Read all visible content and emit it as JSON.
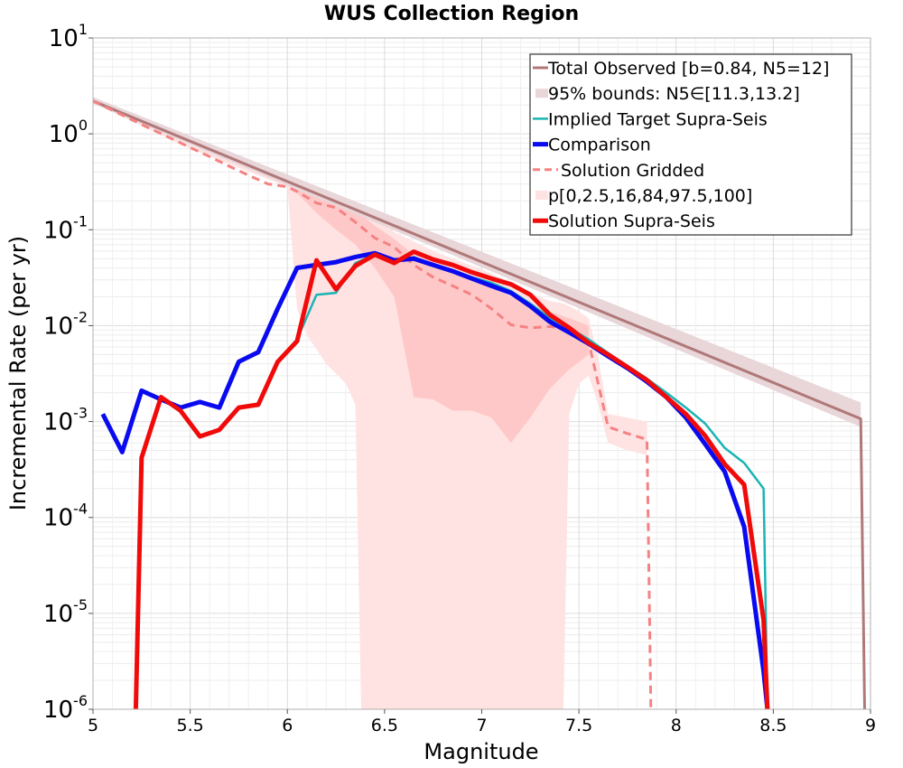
{
  "chart_data": {
    "type": "line",
    "title": "WUS Collection Region",
    "xlabel": "Magnitude",
    "ylabel": "Incremental Rate (per yr)",
    "xlim": [
      5,
      9
    ],
    "ylim": [
      1e-06,
      10
    ],
    "yscale": "log",
    "grid": true,
    "legend_position": "top-right",
    "x_ticks": [
      "5",
      "5.5",
      "6",
      "6.5",
      "7",
      "7.5",
      "8",
      "8.5",
      "9"
    ],
    "y_ticks": [
      {
        "base": "10",
        "exp": "-6"
      },
      {
        "base": "10",
        "exp": "-5"
      },
      {
        "base": "10",
        "exp": "-4"
      },
      {
        "base": "10",
        "exp": "-3"
      },
      {
        "base": "10",
        "exp": "-2"
      },
      {
        "base": "10",
        "exp": "-1"
      },
      {
        "base": "10",
        "exp": "0"
      },
      {
        "base": "10",
        "exp": "1"
      }
    ],
    "legend": [
      "Total Observed [b=0.84, N5=12]",
      "95% bounds: N5∈[11.3,13.2]",
      "Implied Target Supra-Seis",
      "Comparison",
      "Solution Gridded",
      "p[0,2.5,16,84,97.5,100]",
      "Solution Supra-Seis"
    ],
    "colors": {
      "total_observed": "#b07878",
      "bounds_fill": "#e8d6d9",
      "implied_target": "#1ab4b4",
      "comparison": "#0a0af0",
      "solution_gridded": "#f58282",
      "percentile_outer": "#ffe2e2",
      "percentile_inner": "#ffc8c8",
      "solution_supra": "#f00a0a"
    },
    "total_observed": {
      "x": [
        5.0,
        8.95,
        8.97
      ],
      "y": [
        2.2,
        0.00107,
        1e-06
      ]
    },
    "bounds": {
      "x": [
        5.0,
        8.95
      ],
      "lower": [
        2.07,
        0.00088
      ],
      "upper": [
        2.42,
        0.00158
      ]
    },
    "solution_gridded": {
      "x": [
        5.0,
        5.1,
        5.2,
        5.3,
        5.4,
        5.5,
        5.6,
        5.7,
        5.8,
        5.9,
        6.0,
        6.05,
        6.15,
        6.2,
        6.25,
        6.35,
        6.45,
        6.55,
        6.65,
        6.75,
        6.85,
        6.95,
        7.05,
        7.15,
        7.25,
        7.35,
        7.45,
        7.55,
        7.65,
        7.75,
        7.85,
        7.87
      ],
      "y": [
        2.2,
        1.76,
        1.4,
        1.12,
        0.9,
        0.72,
        0.58,
        0.46,
        0.37,
        0.3,
        0.28,
        0.25,
        0.19,
        0.18,
        0.17,
        0.12,
        0.082,
        0.066,
        0.043,
        0.032,
        0.026,
        0.021,
        0.015,
        0.0102,
        0.0095,
        0.0098,
        0.0092,
        0.0068,
        0.00088,
        0.00075,
        0.00065,
        1e-06
      ]
    },
    "percentile_outer": {
      "x": [
        5.0,
        5.5,
        6.0,
        6.05,
        6.1,
        6.2,
        6.3,
        6.35,
        6.38,
        6.45,
        6.55,
        6.65,
        6.75,
        6.85,
        6.95,
        7.05,
        7.15,
        7.25,
        7.35,
        7.42,
        7.45,
        7.5,
        7.55,
        7.6,
        7.65,
        7.75,
        7.85
      ],
      "lower": [
        2.1,
        0.7,
        0.28,
        0.015,
        0.008,
        0.004,
        0.0025,
        0.0015,
        1e-06,
        1e-06,
        1e-06,
        1e-06,
        1e-06,
        1e-06,
        1e-06,
        1e-06,
        1e-06,
        1e-06,
        1e-06,
        1e-06,
        0.0012,
        0.0025,
        0.003,
        0.0015,
        0.0006,
        0.0005,
        0.00045
      ],
      "upper": [
        2.3,
        0.76,
        0.33,
        0.32,
        0.26,
        0.24,
        0.21,
        0.19,
        0.17,
        0.13,
        0.095,
        0.075,
        0.06,
        0.05,
        0.042,
        0.035,
        0.028,
        0.022,
        0.018,
        0.017,
        0.016,
        0.014,
        0.012,
        0.0045,
        0.0012,
        0.0011,
        0.001
      ]
    },
    "percentile_inner": {
      "x": [
        6.05,
        6.15,
        6.25,
        6.35,
        6.45,
        6.55,
        6.65,
        6.75,
        6.85,
        6.95,
        7.05,
        7.15,
        7.25,
        7.35,
        7.45,
        7.55
      ],
      "lower": [
        0.24,
        0.15,
        0.1,
        0.07,
        0.04,
        0.02,
        0.0018,
        0.0017,
        0.0013,
        0.0013,
        0.0011,
        0.0006,
        0.0011,
        0.0022,
        0.0035,
        0.005
      ],
      "upper": [
        0.3,
        0.22,
        0.2,
        0.16,
        0.11,
        0.08,
        0.055,
        0.045,
        0.038,
        0.03,
        0.025,
        0.02,
        0.016,
        0.014,
        0.012,
        0.01
      ]
    },
    "implied_target": {
      "x": [
        6.05,
        6.15,
        6.25,
        6.35,
        6.45,
        6.55,
        6.65,
        6.75,
        6.85,
        6.95,
        7.05,
        7.15,
        7.25,
        7.35,
        7.45,
        7.55,
        7.65,
        7.75,
        7.85,
        7.95,
        8.05,
        8.15,
        8.25,
        8.35,
        8.45,
        8.47
      ],
      "y": [
        0.0072,
        0.021,
        0.022,
        0.045,
        0.055,
        0.046,
        0.052,
        0.043,
        0.038,
        0.032,
        0.028,
        0.023,
        0.017,
        0.012,
        0.0095,
        0.0072,
        0.0052,
        0.0038,
        0.0028,
        0.002,
        0.0014,
        0.00095,
        0.00053,
        0.00037,
        0.0002,
        1e-06
      ]
    },
    "comparison": {
      "x": [
        5.05,
        5.15,
        5.25,
        5.35,
        5.45,
        5.55,
        5.65,
        5.75,
        5.85,
        5.95,
        6.05,
        6.15,
        6.25,
        6.35,
        6.45,
        6.55,
        6.65,
        6.75,
        6.85,
        6.95,
        7.05,
        7.15,
        7.25,
        7.35,
        7.45,
        7.55,
        7.65,
        7.75,
        7.85,
        7.95,
        8.05,
        8.15,
        8.25,
        8.35,
        8.45,
        8.47
      ],
      "y": [
        0.0012,
        0.00048,
        0.0021,
        0.0017,
        0.0014,
        0.0016,
        0.0014,
        0.0042,
        0.0053,
        0.015,
        0.04,
        0.043,
        0.046,
        0.052,
        0.057,
        0.048,
        0.05,
        0.043,
        0.037,
        0.031,
        0.026,
        0.022,
        0.016,
        0.011,
        0.0085,
        0.0065,
        0.0048,
        0.0036,
        0.0026,
        0.0018,
        0.0011,
        0.00058,
        0.0003,
        8e-05,
        2.5e-06,
        1e-06
      ]
    },
    "solution_supra": {
      "x": [
        5.22,
        5.25,
        5.35,
        5.45,
        5.55,
        5.65,
        5.75,
        5.85,
        5.95,
        6.05,
        6.15,
        6.25,
        6.35,
        6.45,
        6.55,
        6.65,
        6.75,
        6.85,
        6.95,
        7.05,
        7.15,
        7.25,
        7.35,
        7.45,
        7.55,
        7.65,
        7.75,
        7.85,
        7.95,
        8.05,
        8.15,
        8.25,
        8.35,
        8.45,
        8.47
      ],
      "y": [
        1e-06,
        0.00042,
        0.0018,
        0.0013,
        0.0007,
        0.00082,
        0.0014,
        0.0015,
        0.0042,
        0.0069,
        0.048,
        0.024,
        0.042,
        0.055,
        0.045,
        0.059,
        0.049,
        0.043,
        0.036,
        0.031,
        0.027,
        0.021,
        0.013,
        0.0095,
        0.0066,
        0.005,
        0.0037,
        0.0027,
        0.0018,
        0.0012,
        0.00071,
        0.00036,
        0.00022,
        8.5e-06,
        1e-06
      ]
    }
  }
}
